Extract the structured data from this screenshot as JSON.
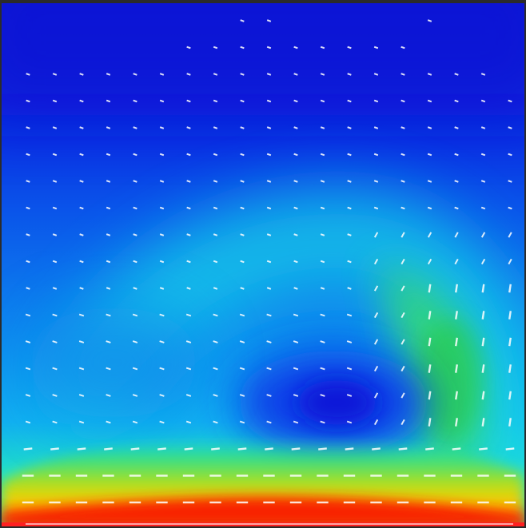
{
  "image": {
    "kind": "lid-driven cavity flow contour with velocity vectors",
    "colormap": [
      "#0018d8",
      "#0a5ef0",
      "#14b8f0",
      "#18e8d0",
      "#38e060",
      "#b8e020",
      "#f8c000",
      "#f83000"
    ],
    "background_color": "#0a14e0",
    "vector_color": "#ffffff",
    "lid_color": "#ff2020",
    "vector_grid": {
      "columns": 19,
      "rows": 19
    }
  }
}
